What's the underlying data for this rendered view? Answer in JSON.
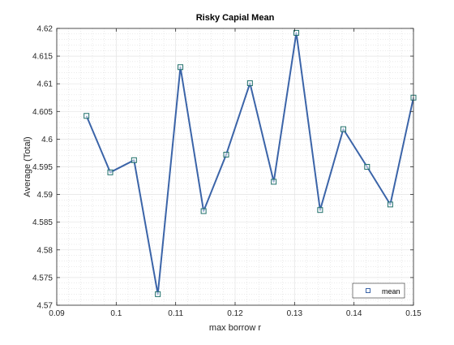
{
  "chart_data": {
    "type": "line",
    "title": "Risky Capial Mean",
    "xlabel": "max borrow r",
    "ylabel": "Average (Total)",
    "xlim": [
      0.09,
      0.15
    ],
    "ylim": [
      4.57,
      4.62
    ],
    "x_ticks": [
      "0.09",
      "0.1",
      "0.11",
      "0.12",
      "0.13",
      "0.14",
      "0.15"
    ],
    "y_ticks": [
      "4.57",
      "4.575",
      "4.58",
      "4.585",
      "4.59",
      "4.595",
      "4.6",
      "4.605",
      "4.61",
      "4.615",
      "4.62"
    ],
    "grid": true,
    "minor_grid": true,
    "legend_position": "bottom-right",
    "series": [
      {
        "name": "mean",
        "color": "#3b64a8",
        "marker": "square",
        "x": [
          0.095,
          0.099,
          0.103,
          0.107,
          0.1108,
          0.1147,
          0.1185,
          0.1225,
          0.1265,
          0.1303,
          0.1343,
          0.1382,
          0.1422,
          0.1461,
          0.15
        ],
        "y": [
          4.6042,
          4.594,
          4.5962,
          4.572,
          4.613,
          4.587,
          4.5972,
          4.6101,
          4.5923,
          4.6192,
          4.5872,
          4.6018,
          4.595,
          4.5882,
          4.6075
        ]
      }
    ]
  }
}
